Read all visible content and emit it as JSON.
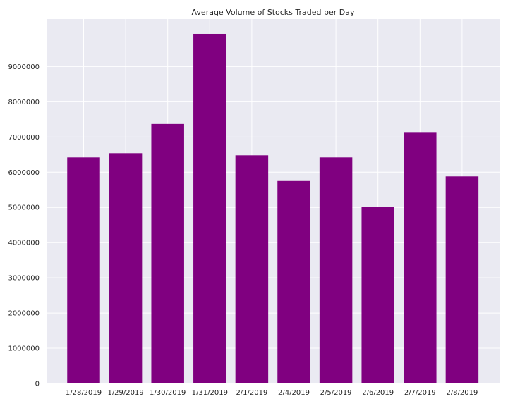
{
  "chart_data": {
    "type": "bar",
    "title": "Average Volume of Stocks Traded per Day",
    "xlabel": "",
    "ylabel": "",
    "categories": [
      "1/28/2019",
      "1/29/2019",
      "1/30/2019",
      "1/31/2019",
      "2/1/2019",
      "2/4/2019",
      "2/5/2019",
      "2/6/2019",
      "2/7/2019",
      "2/8/2019"
    ],
    "values": [
      6420000,
      6540000,
      7370000,
      9930000,
      6480000,
      5750000,
      6420000,
      5020000,
      7140000,
      5880000
    ],
    "ylim": [
      0,
      10350000
    ],
    "yticks": [
      "0",
      "1000000",
      "2000000",
      "3000000",
      "4000000",
      "5000000",
      "6000000",
      "7000000",
      "8000000",
      "9000000"
    ],
    "ytick_values": [
      0,
      1000000,
      2000000,
      3000000,
      4000000,
      5000000,
      6000000,
      7000000,
      8000000,
      9000000
    ],
    "grid": true,
    "colors": {
      "bar": "#800080",
      "plot_background": "#eaeaf2",
      "grid": "#ffffff"
    }
  }
}
